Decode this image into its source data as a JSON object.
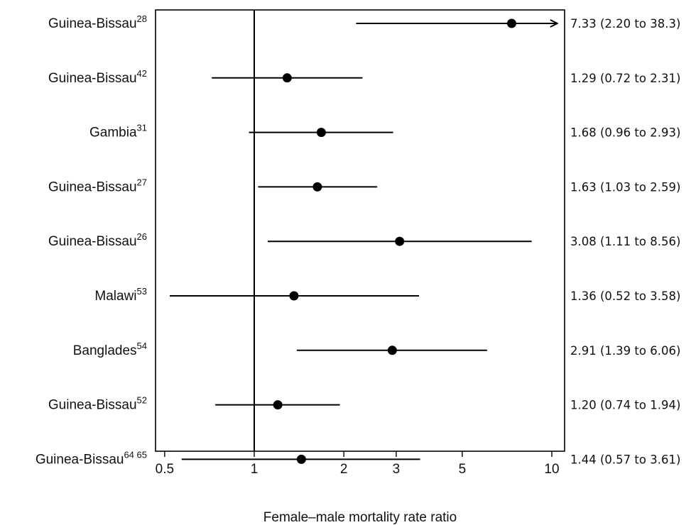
{
  "chart_data": {
    "type": "forest",
    "xlabel": "Female–male mortality rate ratio",
    "x_scale": "log",
    "xlim": [
      0.48,
      10.5
    ],
    "xticks": [
      {
        "value": 0.5,
        "label": "0.5"
      },
      {
        "value": 1,
        "label": "1"
      },
      {
        "value": 2,
        "label": "2"
      },
      {
        "value": 3,
        "label": "3"
      },
      {
        "value": 5,
        "label": "5"
      },
      {
        "value": 10,
        "label": "10"
      }
    ],
    "reference_line": 1,
    "studies": [
      {
        "name": "Guinea-Bissau",
        "ref": "28",
        "estimate": 7.33,
        "lower": 2.2,
        "upper": 38.3,
        "ci_text": "7.33 (2.20 to 38.3)",
        "upper_truncated": true
      },
      {
        "name": "Guinea-Bissau",
        "ref": "42",
        "estimate": 1.29,
        "lower": 0.72,
        "upper": 2.31,
        "ci_text": "1.29 (0.72 to 2.31)"
      },
      {
        "name": "Gambia",
        "ref": "31",
        "estimate": 1.68,
        "lower": 0.96,
        "upper": 2.93,
        "ci_text": "1.68 (0.96 to 2.93)"
      },
      {
        "name": "Guinea-Bissau",
        "ref": "27",
        "estimate": 1.63,
        "lower": 1.03,
        "upper": 2.59,
        "ci_text": "1.63 (1.03 to 2.59)"
      },
      {
        "name": "Guinea-Bissau",
        "ref": "26",
        "estimate": 3.08,
        "lower": 1.11,
        "upper": 8.56,
        "ci_text": "3.08 (1.11 to 8.56)"
      },
      {
        "name": "Malawi",
        "ref": "53",
        "estimate": 1.36,
        "lower": 0.52,
        "upper": 3.58,
        "ci_text": "1.36 (0.52 to 3.58)"
      },
      {
        "name": "Banglades",
        "ref": "54",
        "estimate": 2.91,
        "lower": 1.39,
        "upper": 6.06,
        "ci_text": "2.91 (1.39 to 6.06)"
      },
      {
        "name": "Guinea-Bissau",
        "ref": "52",
        "estimate": 1.2,
        "lower": 0.74,
        "upper": 1.94,
        "ci_text": "1.20 (0.74 to 1.94)"
      },
      {
        "name": "Guinea-Bissau",
        "ref": "64 65",
        "estimate": 1.44,
        "lower": 0.57,
        "upper": 3.61,
        "ci_text": "1.44 (0.57 to 3.61)"
      }
    ]
  }
}
